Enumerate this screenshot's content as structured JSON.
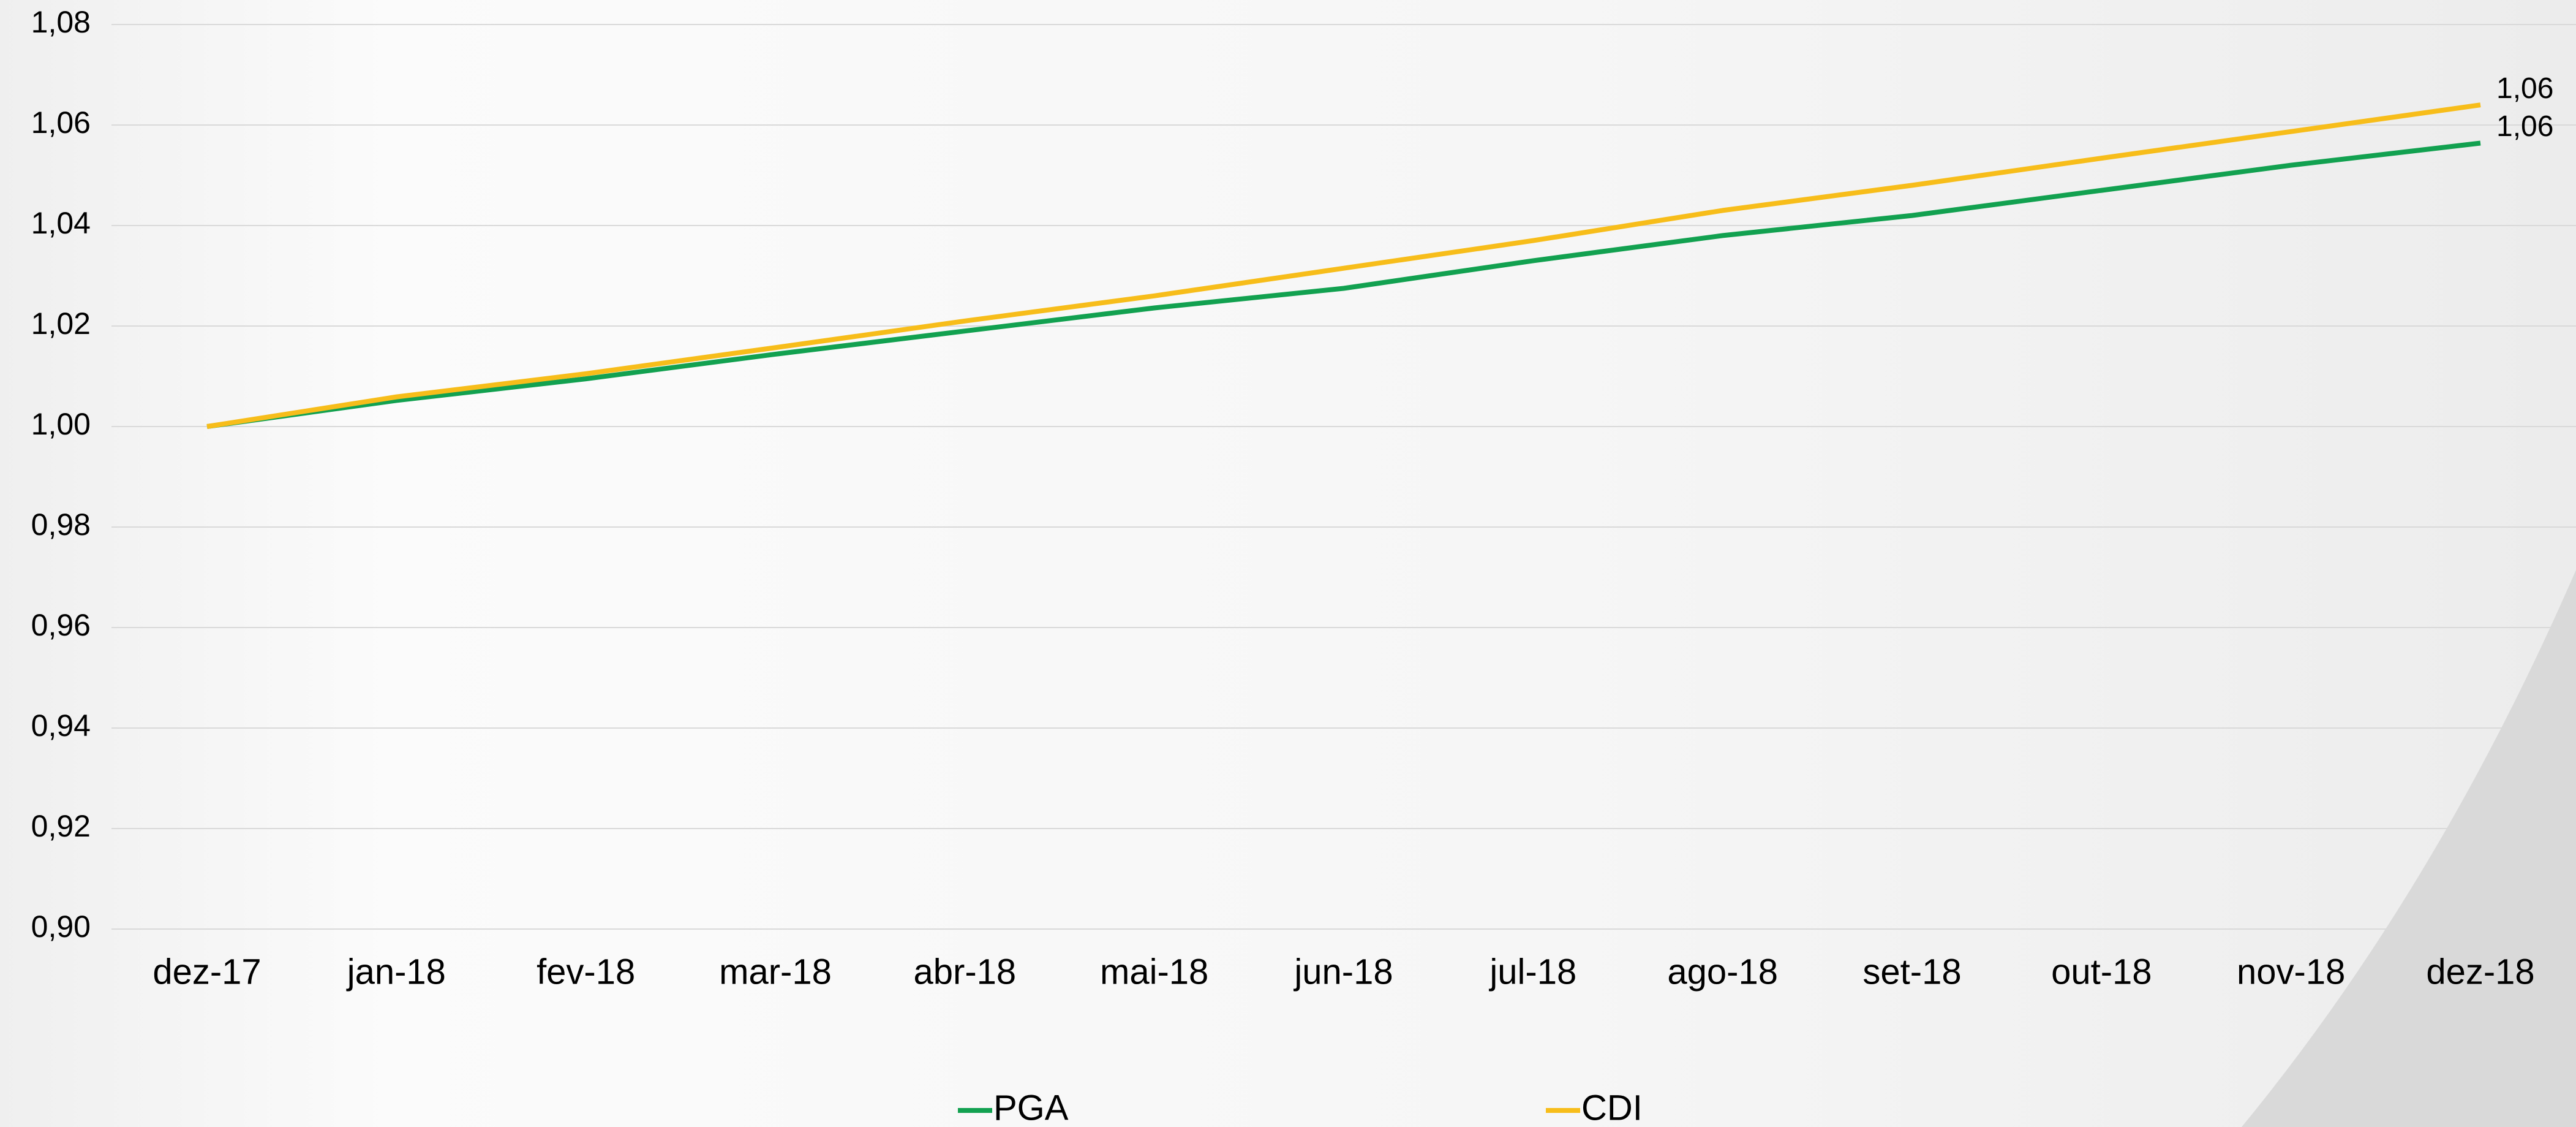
{
  "chart_data": {
    "type": "line",
    "categories": [
      "dez-17",
      "jan-18",
      "fev-18",
      "mar-18",
      "abr-18",
      "mai-18",
      "jun-18",
      "jul-18",
      "ago-18",
      "set-18",
      "out-18",
      "nov-18",
      "dez-18"
    ],
    "series": [
      {
        "name": "PGA",
        "color": "#12a150",
        "values": [
          1.0,
          1.0052,
          1.0095,
          1.0144,
          1.019,
          1.0236,
          1.0275,
          1.033,
          1.038,
          1.042,
          1.047,
          1.052,
          1.0564
        ],
        "value_labels": [
          null,
          null,
          null,
          null,
          null,
          null,
          null,
          null,
          null,
          null,
          null,
          null,
          "1,06"
        ]
      },
      {
        "name": "CDI",
        "color": "#f7bd1a",
        "values": [
          1.0,
          1.0059,
          1.0105,
          1.0157,
          1.021,
          1.026,
          1.0315,
          1.037,
          1.043,
          1.048,
          1.0534,
          1.0587,
          1.064
        ],
        "value_labels": [
          null,
          null,
          null,
          null,
          null,
          null,
          null,
          null,
          null,
          null,
          null,
          null,
          "1,06"
        ]
      }
    ],
    "ylim": [
      0.9,
      1.08
    ],
    "yticks": [
      {
        "value": 0.9,
        "label": "0,90"
      },
      {
        "value": 0.92,
        "label": "0,92"
      },
      {
        "value": 0.94,
        "label": "0,94"
      },
      {
        "value": 0.96,
        "label": "0,96"
      },
      {
        "value": 0.98,
        "label": "0,98"
      },
      {
        "value": 1.0,
        "label": "1,00"
      },
      {
        "value": 1.02,
        "label": "1,02"
      },
      {
        "value": 1.04,
        "label": "1,04"
      },
      {
        "value": 1.06,
        "label": "1,06"
      },
      {
        "value": 1.08,
        "label": "1,08"
      }
    ],
    "grid": true,
    "legend": "bottom"
  }
}
